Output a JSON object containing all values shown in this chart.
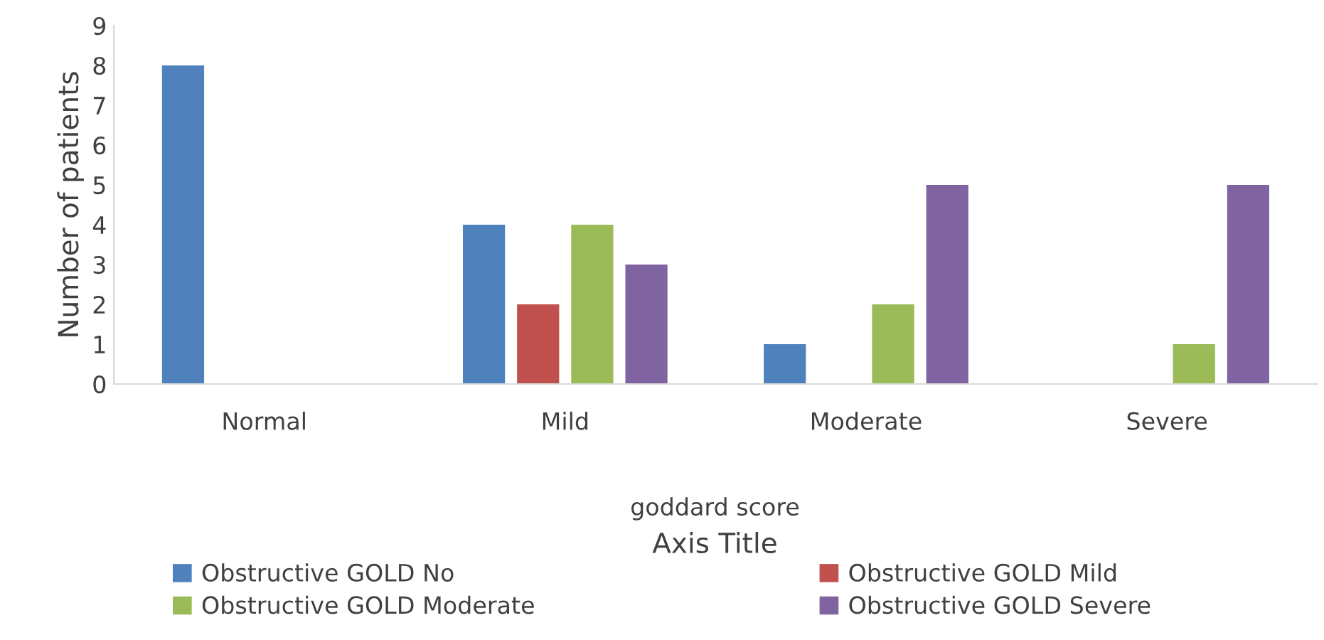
{
  "chart_data": {
    "type": "bar",
    "ylabel": "Number of patients",
    "xlabel": "Axis Title",
    "annotations": [
      "goddard score"
    ],
    "categories": [
      "Normal",
      "Mild",
      "Moderate",
      "Severe"
    ],
    "series": [
      {
        "name": "Obstructive GOLD No",
        "color": "#4f81bd",
        "values": [
          8,
          4,
          1,
          0
        ]
      },
      {
        "name": "Obstructive GOLD Mild",
        "color": "#c0504d",
        "values": [
          0,
          2,
          0,
          0
        ]
      },
      {
        "name": "Obstructive GOLD Moderate",
        "color": "#9bbb59",
        "values": [
          0,
          4,
          2,
          1
        ]
      },
      {
        "name": "Obstructive GOLD Severe",
        "color": "#8064a2",
        "values": [
          0,
          3,
          5,
          5
        ]
      }
    ],
    "ylim": [
      0,
      9
    ],
    "yticks": [
      0,
      1,
      2,
      3,
      4,
      5,
      6,
      7,
      8,
      9
    ],
    "grid": false,
    "legend": "bottom"
  }
}
